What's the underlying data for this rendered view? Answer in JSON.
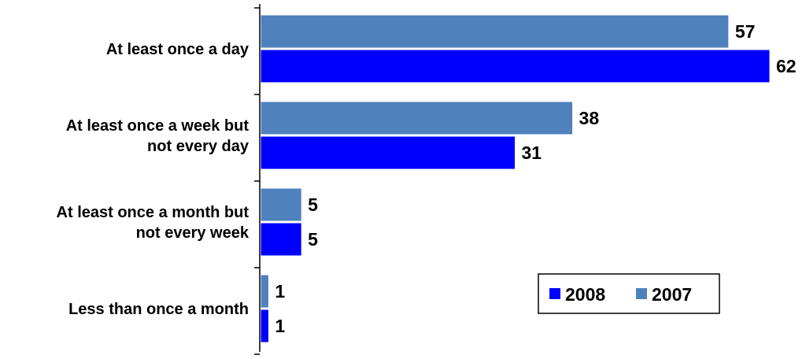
{
  "chart_data": {
    "type": "bar",
    "orientation": "horizontal",
    "title": "",
    "xlabel": "",
    "ylabel": "",
    "categories": [
      [
        "At least once a day"
      ],
      [
        "At least once a week but",
        "not every day"
      ],
      [
        "At least once a month but",
        "not every week"
      ],
      [
        "Less than once a month"
      ]
    ],
    "series": [
      {
        "name": "2007",
        "color": "#4F81BD",
        "values": [
          57,
          38,
          5,
          1
        ]
      },
      {
        "name": "2008",
        "color": "#0000FF",
        "values": [
          62,
          31,
          5,
          1
        ]
      }
    ],
    "xlim": [
      0,
      62
    ],
    "grid": false,
    "legend": {
      "position": "bottom-right",
      "order": [
        "2008",
        "2007"
      ]
    }
  }
}
